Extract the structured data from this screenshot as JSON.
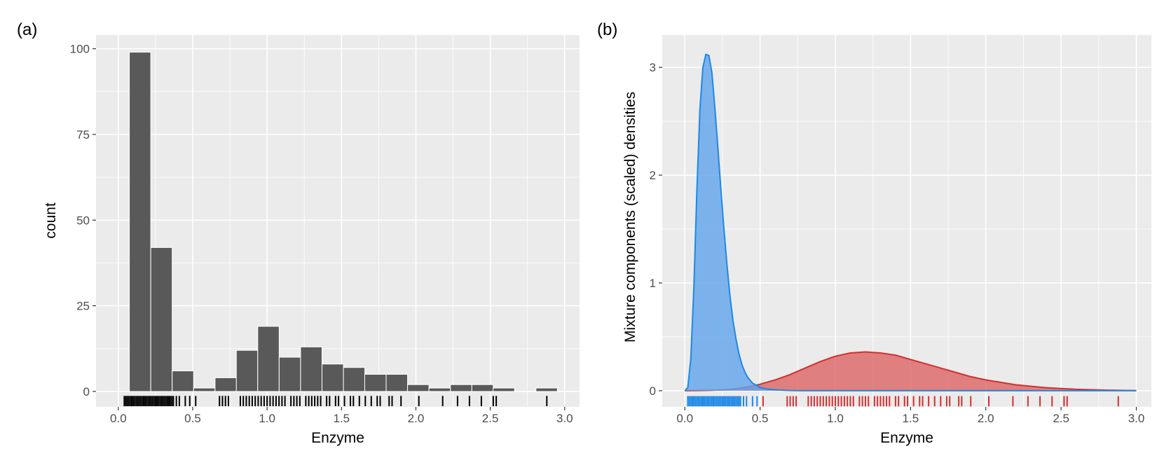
{
  "chart_data": [
    {
      "panel_label": "(a)",
      "type": "bar",
      "xlabel": "Enzyme",
      "ylabel": "count",
      "xlim": [
        -0.15,
        3.1
      ],
      "ylim": [
        -4.5,
        104
      ],
      "x_ticks": [
        0.0,
        0.5,
        1.0,
        1.5,
        2.0,
        2.5,
        3.0
      ],
      "x_tick_labels": [
        "0.0",
        "0.5",
        "1.0",
        "1.5",
        "2.0",
        "2.5",
        "3.0"
      ],
      "y_ticks": [
        0,
        25,
        50,
        75,
        100
      ],
      "y_tick_labels": [
        "0",
        "25",
        "50",
        "75",
        "100"
      ],
      "bin_width": 0.1438,
      "bin_centers": [
        0.146,
        0.29,
        0.434,
        0.578,
        0.722,
        0.865,
        1.009,
        1.153,
        1.297,
        1.441,
        1.585,
        1.728,
        1.872,
        2.016,
        2.16,
        2.304,
        2.448,
        2.591,
        2.735,
        2.879
      ],
      "values": [
        99,
        42,
        6,
        1,
        4,
        12,
        19,
        10,
        13,
        8,
        7,
        5,
        5,
        2,
        1,
        2,
        2,
        1,
        0,
        1
      ],
      "bar_color": "#595959",
      "rug_color": "#000000",
      "rug": [
        0.04,
        0.05,
        0.06,
        0.07,
        0.08,
        0.09,
        0.1,
        0.11,
        0.12,
        0.13,
        0.14,
        0.15,
        0.16,
        0.17,
        0.18,
        0.19,
        0.2,
        0.21,
        0.22,
        0.23,
        0.24,
        0.25,
        0.26,
        0.27,
        0.28,
        0.29,
        0.3,
        0.31,
        0.32,
        0.33,
        0.34,
        0.35,
        0.36,
        0.37,
        0.39,
        0.41,
        0.45,
        0.48,
        0.52,
        0.68,
        0.7,
        0.72,
        0.74,
        0.82,
        0.84,
        0.86,
        0.88,
        0.9,
        0.92,
        0.94,
        0.96,
        0.98,
        1.0,
        1.02,
        1.04,
        1.06,
        1.08,
        1.1,
        1.12,
        1.16,
        1.18,
        1.2,
        1.22,
        1.26,
        1.28,
        1.3,
        1.32,
        1.34,
        1.36,
        1.4,
        1.42,
        1.46,
        1.48,
        1.52,
        1.56,
        1.58,
        1.62,
        1.66,
        1.7,
        1.74,
        1.76,
        1.82,
        1.84,
        1.9,
        2.02,
        2.18,
        2.28,
        2.36,
        2.44,
        2.52,
        2.54,
        2.88
      ]
    },
    {
      "panel_label": "(b)",
      "type": "area",
      "xlabel": "Enzyme",
      "ylabel": "Mixture components (scaled) densities",
      "xlim": [
        -0.15,
        3.1
      ],
      "ylim": [
        -0.15,
        3.3
      ],
      "x_ticks": [
        0.0,
        0.5,
        1.0,
        1.5,
        2.0,
        2.5,
        3.0
      ],
      "x_tick_labels": [
        "0.0",
        "0.5",
        "1.0",
        "1.5",
        "2.0",
        "2.5",
        "3.0"
      ],
      "y_ticks": [
        0,
        1,
        2,
        3
      ],
      "y_tick_labels": [
        "0",
        "1",
        "2",
        "3"
      ],
      "series": [
        {
          "color": "#1e88e5",
          "fill": "#5fa4ec",
          "x": [
            0.0,
            0.02,
            0.04,
            0.06,
            0.08,
            0.1,
            0.12,
            0.14,
            0.16,
            0.18,
            0.2,
            0.22,
            0.24,
            0.26,
            0.28,
            0.3,
            0.32,
            0.34,
            0.36,
            0.38,
            0.4,
            0.42,
            0.45,
            0.5,
            0.55,
            0.6,
            0.7,
            0.8,
            0.9,
            1.0,
            1.5,
            2.0,
            2.5,
            3.0
          ],
          "y": [
            0.0,
            0.03,
            0.3,
            0.95,
            1.85,
            2.6,
            3.0,
            3.12,
            3.11,
            2.95,
            2.62,
            2.25,
            1.86,
            1.5,
            1.17,
            0.88,
            0.65,
            0.48,
            0.34,
            0.24,
            0.17,
            0.12,
            0.07,
            0.03,
            0.015,
            0.008,
            0.002,
            0.0,
            0.0,
            0.0,
            0.0,
            0.0,
            0.0,
            0.0
          ],
          "rug": [
            0.02,
            0.03,
            0.04,
            0.05,
            0.06,
            0.07,
            0.08,
            0.09,
            0.1,
            0.11,
            0.12,
            0.13,
            0.14,
            0.15,
            0.16,
            0.17,
            0.18,
            0.19,
            0.2,
            0.21,
            0.22,
            0.23,
            0.24,
            0.25,
            0.26,
            0.27,
            0.28,
            0.29,
            0.3,
            0.31,
            0.32,
            0.33,
            0.34,
            0.35,
            0.36,
            0.37,
            0.39,
            0.41,
            0.45,
            0.48
          ]
        },
        {
          "color": "#d32f2f",
          "fill": "#dc6464",
          "x": [
            0.0,
            0.1,
            0.2,
            0.3,
            0.4,
            0.5,
            0.6,
            0.7,
            0.8,
            0.9,
            1.0,
            1.1,
            1.2,
            1.3,
            1.4,
            1.5,
            1.6,
            1.7,
            1.8,
            1.9,
            2.0,
            2.2,
            2.4,
            2.6,
            2.8,
            3.0
          ],
          "y": [
            0.0,
            0.002,
            0.005,
            0.012,
            0.03,
            0.06,
            0.1,
            0.15,
            0.21,
            0.27,
            0.32,
            0.35,
            0.36,
            0.35,
            0.33,
            0.29,
            0.25,
            0.21,
            0.17,
            0.13,
            0.1,
            0.055,
            0.028,
            0.013,
            0.005,
            0.001
          ],
          "rug": [
            0.52,
            0.68,
            0.7,
            0.72,
            0.74,
            0.82,
            0.84,
            0.86,
            0.88,
            0.9,
            0.92,
            0.94,
            0.96,
            0.98,
            1.0,
            1.02,
            1.04,
            1.06,
            1.08,
            1.1,
            1.12,
            1.16,
            1.18,
            1.2,
            1.22,
            1.26,
            1.28,
            1.3,
            1.32,
            1.34,
            1.36,
            1.4,
            1.42,
            1.46,
            1.48,
            1.52,
            1.56,
            1.58,
            1.62,
            1.66,
            1.7,
            1.74,
            1.76,
            1.82,
            1.84,
            1.9,
            2.02,
            2.18,
            2.28,
            2.36,
            2.44,
            2.52,
            2.54,
            2.88
          ]
        }
      ]
    }
  ]
}
